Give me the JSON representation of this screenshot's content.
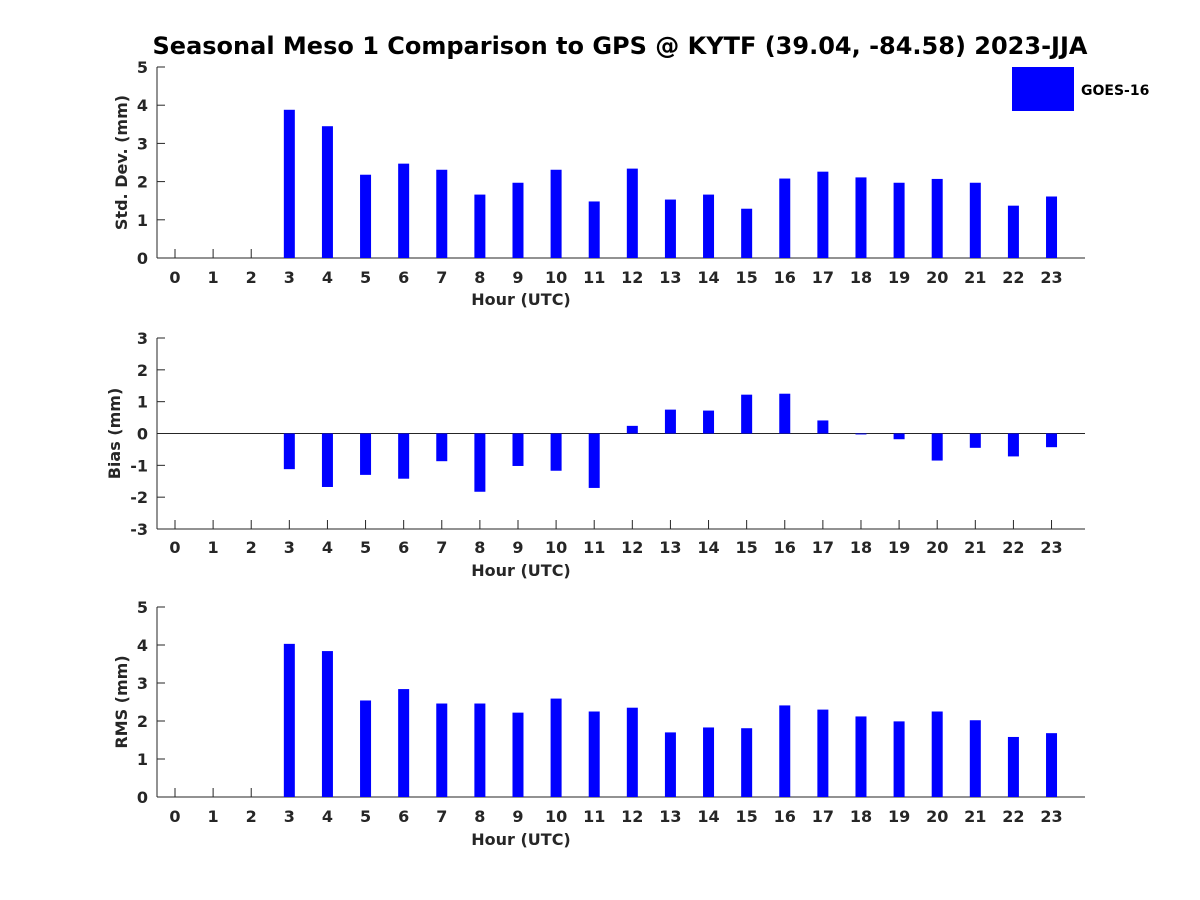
{
  "title": "Seasonal Meso 1 Comparison to GPS @ KYTF (39.04, -84.58) 2023-JJA",
  "legend": {
    "label": "GOES-16",
    "color": "#0000ff",
    "placement": "top-right"
  },
  "chart_data": [
    {
      "type": "bar",
      "xlabel": "Hour (UTC)",
      "ylabel": "Std. Dev. (mm)",
      "ylim": [
        0,
        5
      ],
      "yticks": [
        0,
        1,
        2,
        3,
        4,
        5
      ],
      "categories": [
        "0",
        "1",
        "2",
        "3",
        "4",
        "5",
        "6",
        "7",
        "8",
        "9",
        "10",
        "11",
        "12",
        "13",
        "14",
        "15",
        "16",
        "17",
        "18",
        "19",
        "20",
        "21",
        "22",
        "23"
      ],
      "series": [
        {
          "name": "GOES-16",
          "color": "#0000ff",
          "values": [
            null,
            null,
            null,
            3.88,
            3.45,
            2.18,
            2.47,
            2.31,
            1.66,
            1.97,
            2.31,
            1.48,
            2.34,
            1.53,
            1.66,
            1.29,
            2.08,
            2.26,
            2.11,
            1.97,
            2.07,
            1.97,
            1.37,
            1.61
          ]
        }
      ]
    },
    {
      "type": "bar",
      "xlabel": "Hour (UTC)",
      "ylabel": "Bias (mm)",
      "ylim": [
        -3,
        3
      ],
      "yticks": [
        -3,
        -2,
        -1,
        0,
        1,
        2,
        3
      ],
      "categories": [
        "0",
        "1",
        "2",
        "3",
        "4",
        "5",
        "6",
        "7",
        "8",
        "9",
        "10",
        "11",
        "12",
        "13",
        "14",
        "15",
        "16",
        "17",
        "18",
        "19",
        "20",
        "21",
        "22",
        "23"
      ],
      "series": [
        {
          "name": "GOES-16",
          "color": "#0000ff",
          "values": [
            null,
            null,
            null,
            -1.12,
            -1.68,
            -1.3,
            -1.42,
            -0.87,
            -1.83,
            -1.02,
            -1.17,
            -1.71,
            0.24,
            0.75,
            0.72,
            1.22,
            1.25,
            0.41,
            -0.03,
            -0.18,
            -0.85,
            -0.45,
            -0.72,
            -0.43
          ]
        }
      ]
    },
    {
      "type": "bar",
      "xlabel": "Hour (UTC)",
      "ylabel": "RMS (mm)",
      "ylim": [
        0,
        5
      ],
      "yticks": [
        0,
        1,
        2,
        3,
        4,
        5
      ],
      "categories": [
        "0",
        "1",
        "2",
        "3",
        "4",
        "5",
        "6",
        "7",
        "8",
        "9",
        "10",
        "11",
        "12",
        "13",
        "14",
        "15",
        "16",
        "17",
        "18",
        "19",
        "20",
        "21",
        "22",
        "23"
      ],
      "series": [
        {
          "name": "GOES-16",
          "color": "#0000ff",
          "values": [
            null,
            null,
            null,
            4.03,
            3.84,
            2.54,
            2.84,
            2.46,
            2.46,
            2.22,
            2.59,
            2.25,
            2.35,
            1.7,
            1.83,
            1.81,
            2.41,
            2.3,
            2.12,
            1.99,
            2.25,
            2.02,
            1.58,
            1.68
          ]
        }
      ]
    }
  ]
}
